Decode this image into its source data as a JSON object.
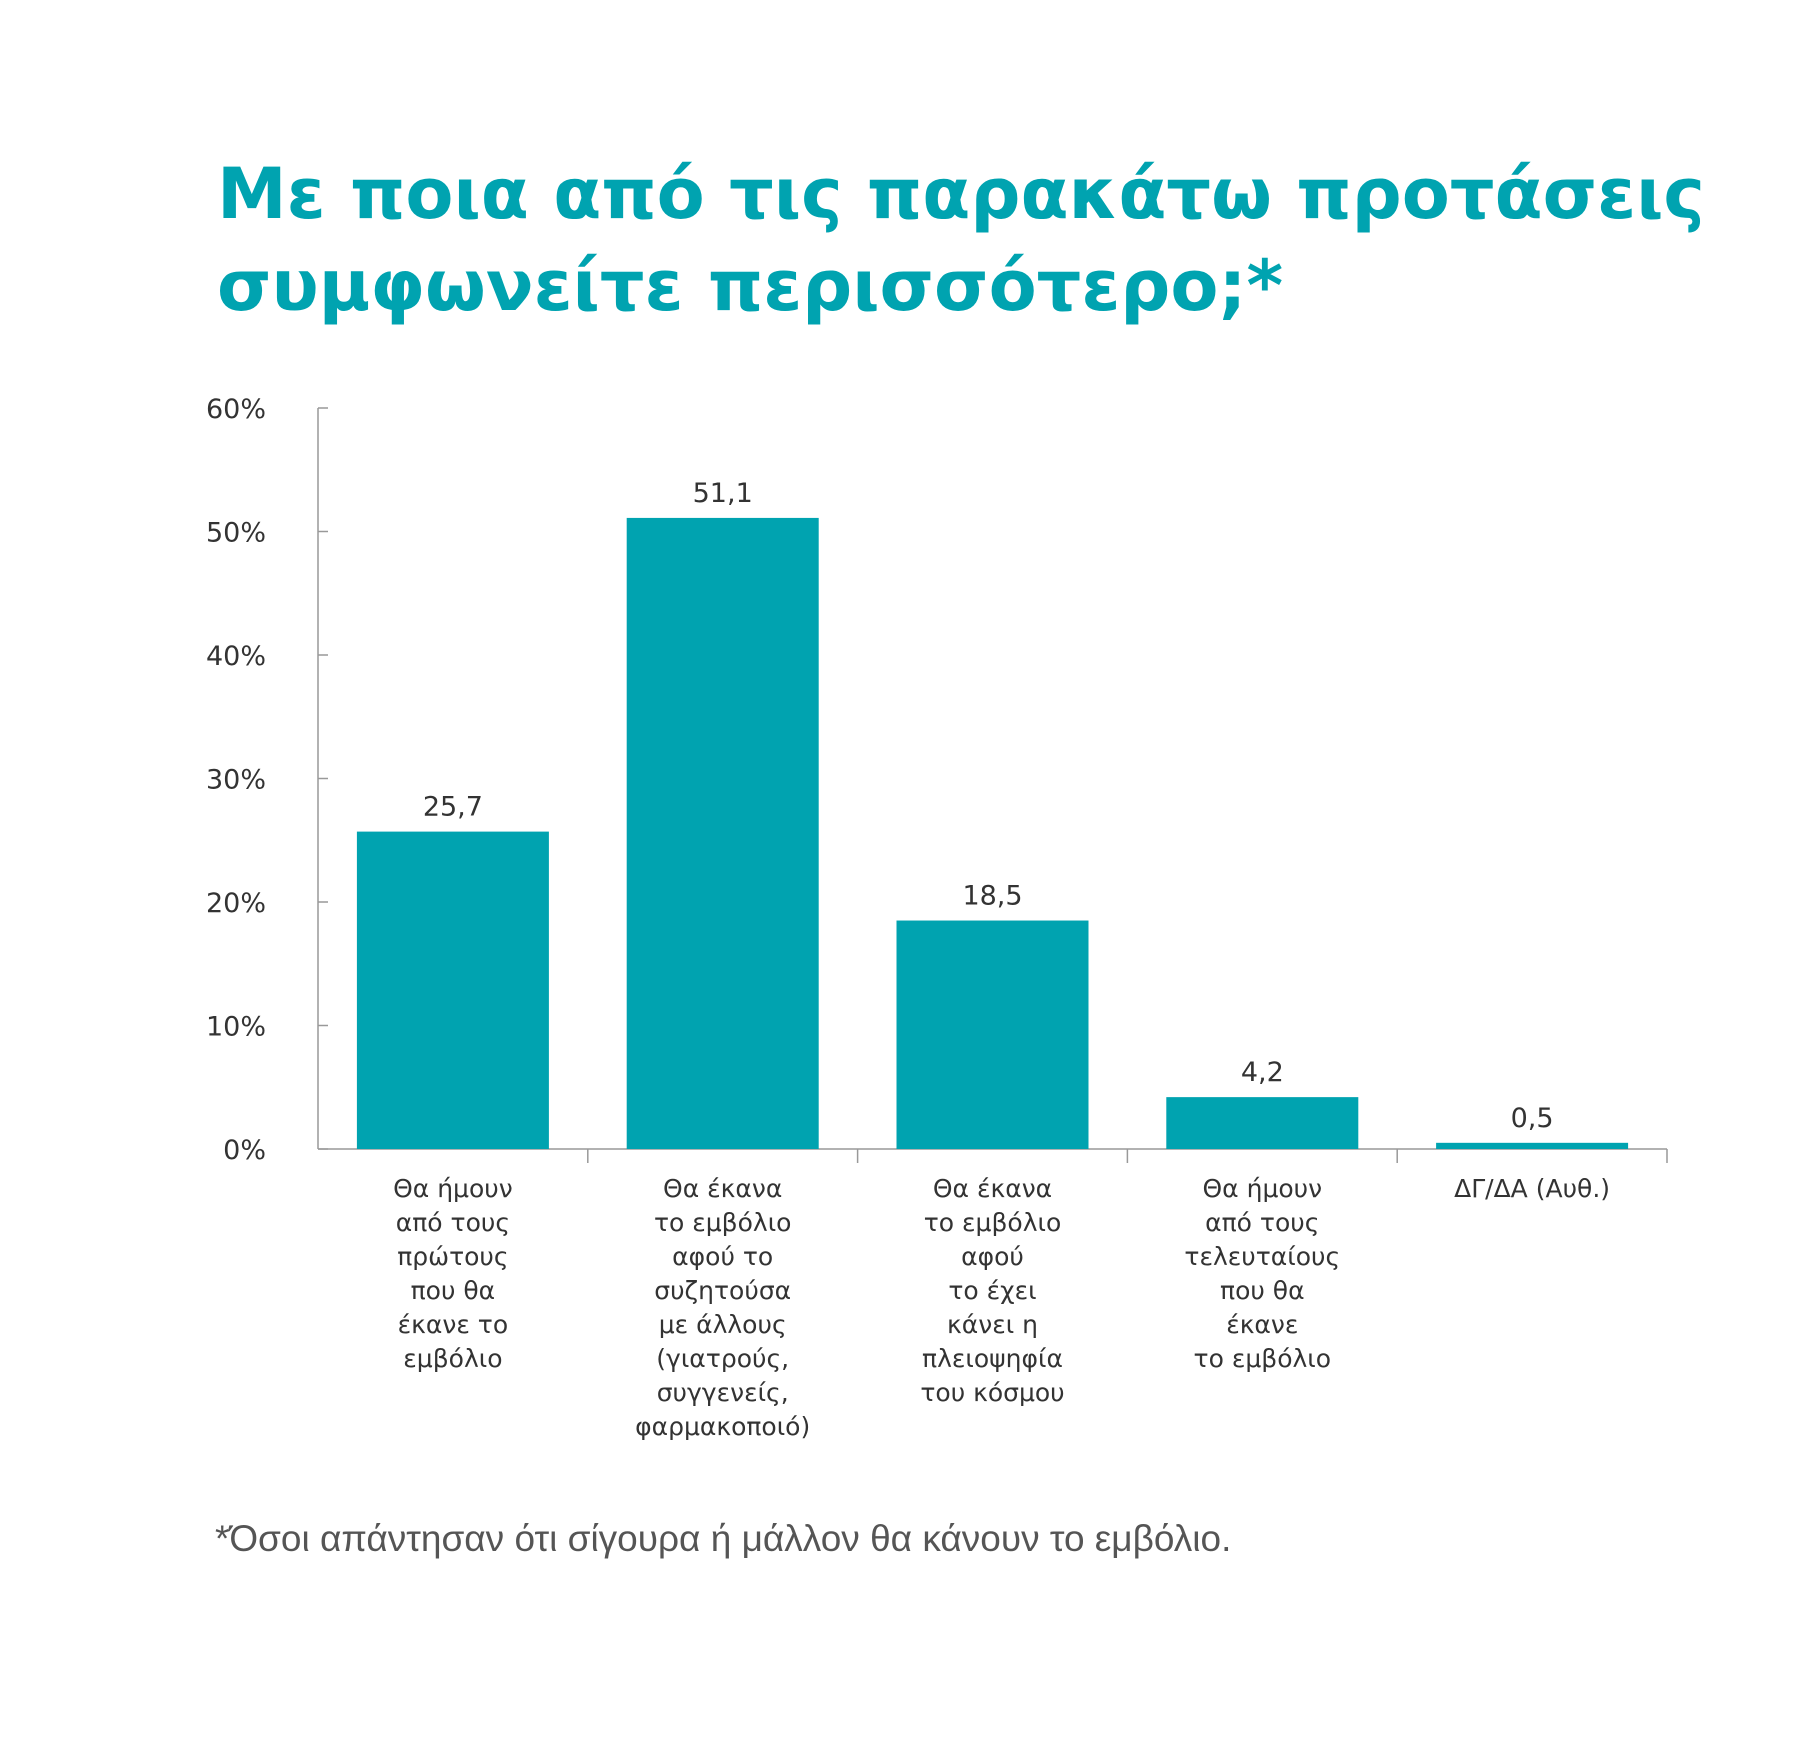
{
  "title_lines": [
    "Με ποια από τις παρακάτω προτάσεις",
    "συμφωνείτε περισσότερο;*"
  ],
  "footnote": "*Όσοι απάντησαν ότι σίγουρα ή μάλλον θα κάνουν το εμβόλιο.",
  "colors": {
    "bar": "#00a3b0",
    "title": "#00a3b0",
    "axis": "#999999",
    "text": "#333333"
  },
  "chart_data": {
    "type": "bar",
    "title": "Με ποια από τις παρακάτω προτάσεις συμφωνείτε περισσότερο;*",
    "xlabel": "",
    "ylabel": "",
    "ylim": [
      0,
      60
    ],
    "yticks": [
      0,
      10,
      20,
      30,
      40,
      50,
      60
    ],
    "ytick_labels": [
      "0%",
      "10%",
      "20%",
      "30%",
      "40%",
      "50%",
      "60%"
    ],
    "grid": false,
    "legend": "none",
    "categories": [
      [
        "Θα ήμουν",
        "από τους",
        "πρώτους",
        "που θα",
        "έκανε το",
        "εμβόλιο"
      ],
      [
        "Θα έκανα",
        "το εμβόλιο",
        "αφού το",
        "συζητούσα",
        "με άλλους",
        "(γιατρούς,",
        "συγγενείς,",
        "φαρμακοποιό)"
      ],
      [
        "Θα έκανα",
        "το εμβόλιο",
        "αφού",
        "το έχει",
        "κάνει η",
        "πλειοψηφία",
        "του κόσμου"
      ],
      [
        "Θα ήμουν",
        "από τους",
        "τελευταίους",
        "που θα",
        "έκανε",
        "το εμβόλιο"
      ],
      [
        "ΔΓ/ΔΑ (Αυθ.)"
      ]
    ],
    "values": [
      25.7,
      51.1,
      18.5,
      4.2,
      0.5
    ],
    "value_labels": [
      "25,7",
      "51,1",
      "18,5",
      "4,2",
      "0,5"
    ]
  }
}
